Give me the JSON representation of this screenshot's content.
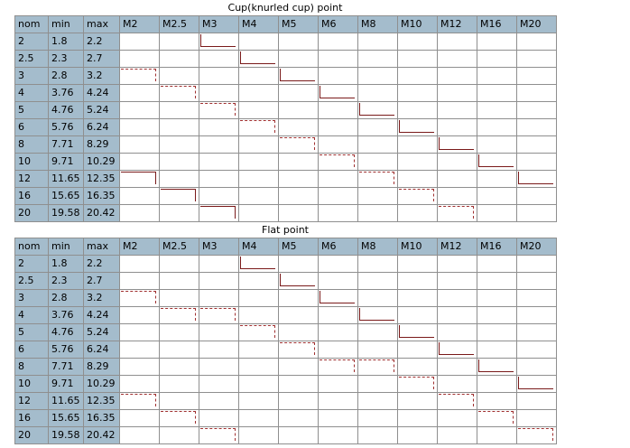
{
  "cup": {
    "title": "Cup(knurled cup) point",
    "headers": [
      "nom",
      "min",
      "max",
      "M2",
      "M2.5",
      "M3",
      "M4",
      "M5",
      "M6",
      "M8",
      "M10",
      "M12",
      "M16",
      "M20"
    ],
    "rows": [
      {
        "nom": "2",
        "min": "1.8",
        "max": "2.2",
        "marks": {
          "2": "solid-left"
        }
      },
      {
        "nom": "2.5",
        "min": "2.3",
        "max": "2.7",
        "marks": {
          "3": "solid-left"
        }
      },
      {
        "nom": "3",
        "min": "2.8",
        "max": "3.2",
        "marks": {
          "0": "dash",
          "4": "solid-left"
        }
      },
      {
        "nom": "4",
        "min": "3.76",
        "max": "4.24",
        "marks": {
          "1": "dash",
          "5": "solid-left"
        }
      },
      {
        "nom": "5",
        "min": "4.76",
        "max": "5.24",
        "marks": {
          "2": "dash",
          "6": "solid-left"
        }
      },
      {
        "nom": "6",
        "min": "5.76",
        "max": "6.24",
        "marks": {
          "3": "dash",
          "7": "solid-left"
        }
      },
      {
        "nom": "8",
        "min": "7.71",
        "max": "8.29",
        "marks": {
          "4": "dash",
          "8": "solid-left"
        }
      },
      {
        "nom": "10",
        "min": "9.71",
        "max": "10.29",
        "marks": {
          "5": "dash",
          "9": "solid-left"
        }
      },
      {
        "nom": "12",
        "min": "11.65",
        "max": "12.35",
        "marks": {
          "0": "solid",
          "6": "dash",
          "10": "solid-left"
        }
      },
      {
        "nom": "16",
        "min": "15.65",
        "max": "16.35",
        "marks": {
          "1": "solid",
          "7": "dash"
        }
      },
      {
        "nom": "20",
        "min": "19.58",
        "max": "20.42",
        "marks": {
          "2": "solid",
          "8": "dash"
        }
      }
    ]
  },
  "flat": {
    "title": "Flat point",
    "headers": [
      "nom",
      "min",
      "max",
      "M2",
      "M2.5",
      "M3",
      "M4",
      "M5",
      "M6",
      "M8",
      "M10",
      "M12",
      "M16",
      "M20"
    ],
    "rows": [
      {
        "nom": "2",
        "min": "1.8",
        "max": "2.2",
        "marks": {
          "3": "solid-left"
        }
      },
      {
        "nom": "2.5",
        "min": "2.3",
        "max": "2.7",
        "marks": {
          "4": "solid-left"
        }
      },
      {
        "nom": "3",
        "min": "2.8",
        "max": "3.2",
        "marks": {
          "0": "dash",
          "5": "solid-left"
        }
      },
      {
        "nom": "4",
        "min": "3.76",
        "max": "4.24",
        "marks": {
          "1": "dash",
          "2": "dash",
          "6": "solid-left"
        }
      },
      {
        "nom": "5",
        "min": "4.76",
        "max": "5.24",
        "marks": {
          "3": "dash",
          "7": "solid-left"
        }
      },
      {
        "nom": "6",
        "min": "5.76",
        "max": "6.24",
        "marks": {
          "4": "dash",
          "8": "solid-left"
        }
      },
      {
        "nom": "8",
        "min": "7.71",
        "max": "8.29",
        "marks": {
          "5": "dash",
          "6": "dash",
          "9": "solid-left"
        }
      },
      {
        "nom": "10",
        "min": "9.71",
        "max": "10.29",
        "marks": {
          "7": "dash",
          "10": "solid-left"
        }
      },
      {
        "nom": "12",
        "min": "11.65",
        "max": "12.35",
        "marks": {
          "0": "dash",
          "8": "dash"
        }
      },
      {
        "nom": "16",
        "min": "15.65",
        "max": "16.35",
        "marks": {
          "1": "dash",
          "9": "dash"
        }
      },
      {
        "nom": "20",
        "min": "19.58",
        "max": "20.42",
        "marks": {
          "2": "dash",
          "10": "dash"
        }
      }
    ]
  }
}
